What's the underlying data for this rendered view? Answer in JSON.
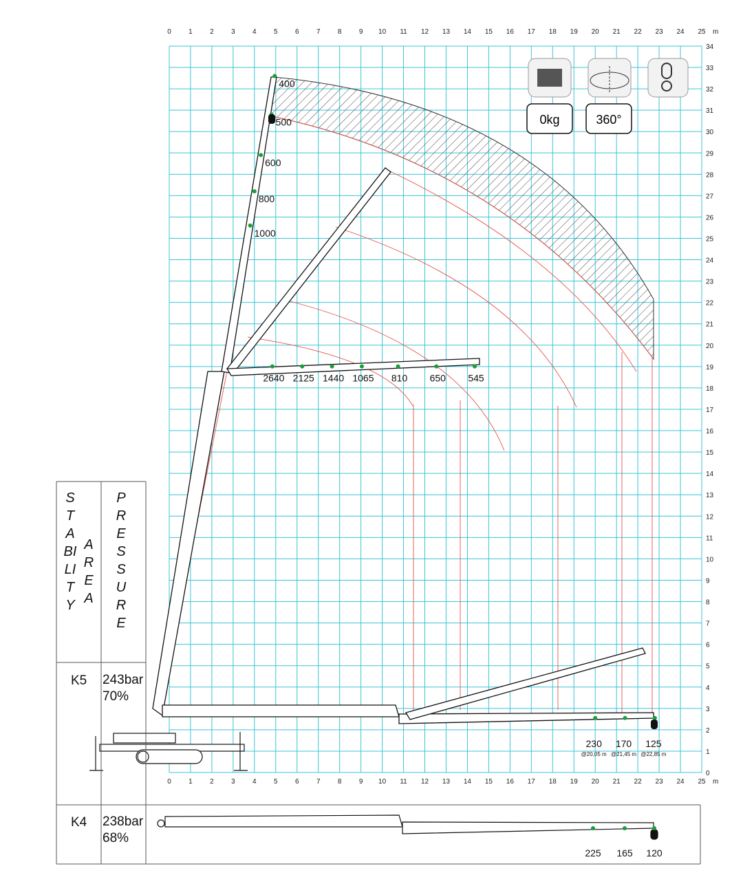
{
  "axes": {
    "x_ticks": [
      0,
      1,
      2,
      3,
      4,
      5,
      6,
      7,
      8,
      9,
      10,
      11,
      12,
      13,
      14,
      15,
      16,
      17,
      18,
      19,
      20,
      21,
      22,
      23,
      24,
      25
    ],
    "y_ticks": [
      0,
      1,
      2,
      3,
      4,
      5,
      6,
      7,
      8,
      9,
      10,
      11,
      12,
      13,
      14,
      15,
      16,
      17,
      18,
      19,
      20,
      21,
      22,
      23,
      24,
      25,
      26,
      27,
      28,
      29,
      30,
      31,
      32,
      33,
      34
    ],
    "unit": "m",
    "grid_color": "#3cc4d6",
    "curve_color": "#e8534a",
    "marker_color": "#1a9e3a"
  },
  "settings": {
    "counterweight_label": "0kg",
    "rotation_label": "360°",
    "icons": [
      "counterweight-icon",
      "rotation-icon",
      "hook-icon"
    ]
  },
  "loads": {
    "vertical_boom": [
      {
        "label": "400",
        "x": 4.95,
        "y": 32.6
      },
      {
        "label": "500",
        "x": 4.8,
        "y": 30.8
      },
      {
        "label": "600",
        "x": 4.3,
        "y": 28.9
      },
      {
        "label": "800",
        "x": 4.0,
        "y": 27.2
      },
      {
        "label": "1000",
        "x": 3.8,
        "y": 25.6
      }
    ],
    "horizontal_jib": [
      {
        "label": "2640",
        "x": 5.1,
        "y": 19.2
      },
      {
        "label": "2125",
        "x": 6.5,
        "y": 19.2
      },
      {
        "label": "1440",
        "x": 7.9,
        "y": 19.2
      },
      {
        "label": "1065",
        "x": 9.3,
        "y": 19.2
      },
      {
        "label": "810",
        "x": 11.0,
        "y": 19.2
      },
      {
        "label": "650",
        "x": 12.8,
        "y": 19.2
      },
      {
        "label": "545",
        "x": 14.6,
        "y": 19.2
      }
    ],
    "ground_boom": [
      {
        "label": "230",
        "sub": "@20,05 m",
        "x": 20.0,
        "y": 2.55
      },
      {
        "label": "170",
        "sub": "@21,45 m",
        "x": 21.4,
        "y": 2.55
      },
      {
        "label": "125",
        "sub": "@22,85 m",
        "x": 22.8,
        "y": 2.55
      }
    ]
  },
  "table": {
    "stability_label": "STABILITY",
    "area_label": "AREA",
    "pressure_label": "PRESSURE",
    "rows": [
      {
        "config": "K5",
        "pressure": "243bar",
        "percent": "70%"
      },
      {
        "config": "K4",
        "pressure": "238bar",
        "percent": "68%"
      }
    ],
    "k4_loads": [
      "225",
      "165",
      "120"
    ]
  }
}
